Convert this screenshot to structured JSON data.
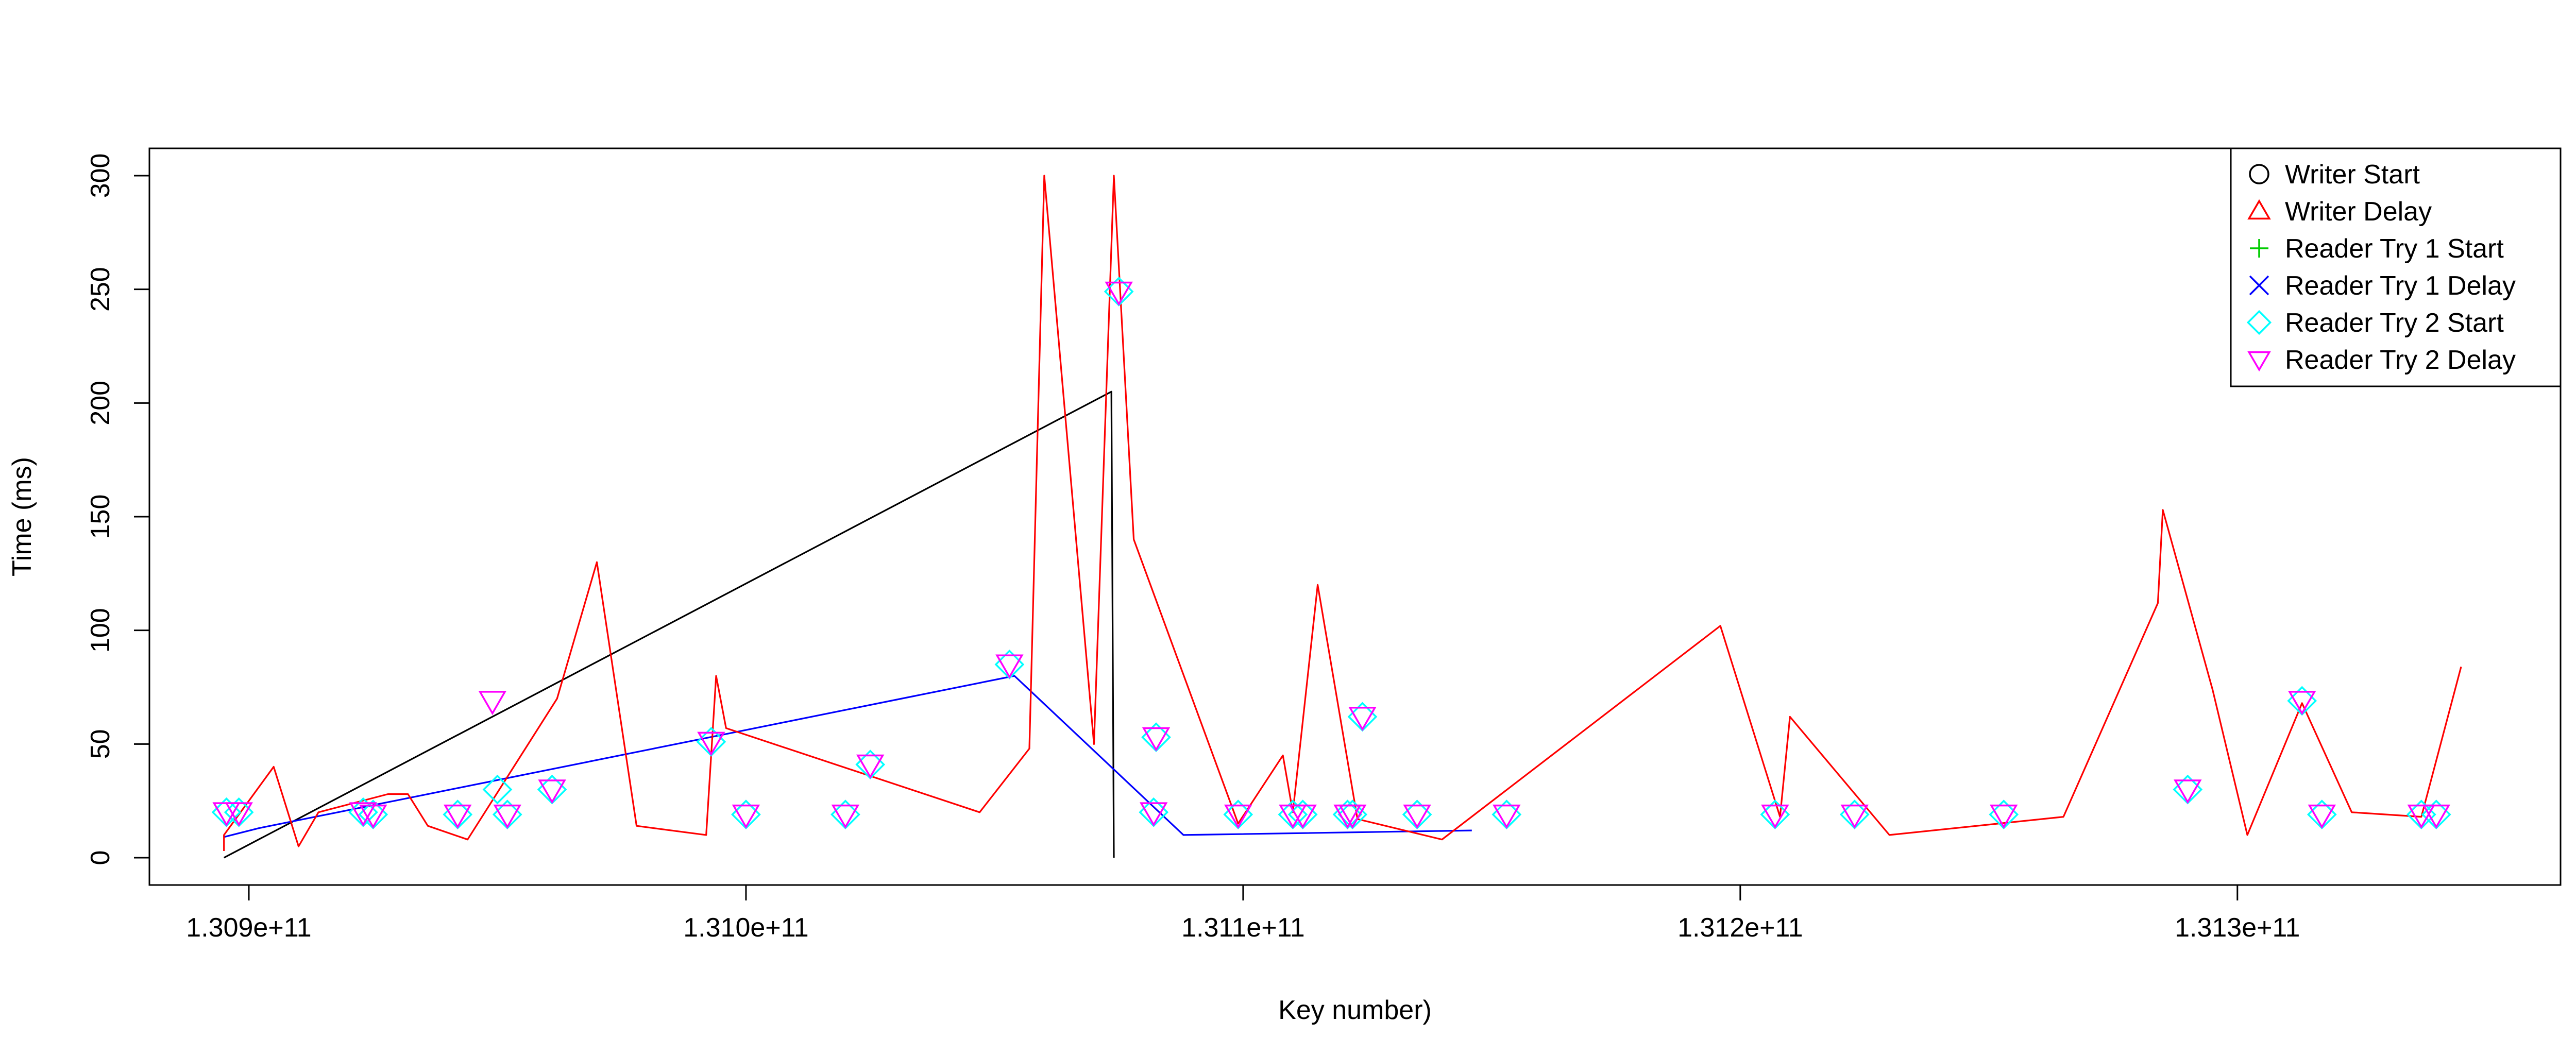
{
  "chart_data": {
    "type": "line",
    "title": "",
    "xlabel": "Key number)",
    "ylabel": "Time (ms)",
    "xlim": [
      130880000000,
      131365000000
    ],
    "ylim": [
      -12,
      312
    ],
    "x_ticks": [
      {
        "value": 130900000000,
        "label": "1.309e+11"
      },
      {
        "value": 131000000000,
        "label": "1.310e+11"
      },
      {
        "value": 131100000000,
        "label": "1.311e+11"
      },
      {
        "value": 131200000000,
        "label": "1.312e+11"
      },
      {
        "value": 131300000000,
        "label": "1.313e+11"
      }
    ],
    "y_ticks": [
      0,
      50,
      100,
      150,
      200,
      250,
      300
    ],
    "grid": false,
    "legend": {
      "position": "top-right",
      "entries": [
        {
          "name": "Writer Start",
          "symbol": "circle",
          "color": "#000000"
        },
        {
          "name": "Writer Delay",
          "symbol": "triangle-up",
          "color": "#ff0000"
        },
        {
          "name": "Reader Try 1 Start",
          "symbol": "plus",
          "color": "#00cc00"
        },
        {
          "name": "Reader Try 1 Delay",
          "symbol": "cross",
          "color": "#0000ff"
        },
        {
          "name": "Reader Try 2 Start",
          "symbol": "diamond",
          "color": "#00ffff"
        },
        {
          "name": "Reader Try 2 Delay",
          "symbol": "triangle-down",
          "color": "#ff00ff"
        }
      ]
    },
    "series": [
      {
        "name": "Writer Start",
        "color": "#000000",
        "baseline": 0,
        "spikes": [
          [
            131073500000,
            205
          ],
          [
            131074000000,
            0
          ]
        ]
      },
      {
        "name": "Reader Try 1 Start",
        "color": "#00aa00",
        "baseline": 9,
        "spikes": []
      },
      {
        "name": "Reader Try 1 Delay",
        "color": "#0000ff",
        "baseline": 9,
        "spikes": [
          [
            130902000000,
            13
          ],
          [
            131054000000,
            80
          ],
          [
            131088000000,
            10
          ],
          [
            131146000000,
            12
          ]
        ]
      },
      {
        "name": "Writer Delay",
        "color": "#ff0000",
        "baseline": 3,
        "spikes": [
          [
            130895000000,
            10
          ],
          [
            130905000000,
            40
          ],
          [
            130910000000,
            5
          ],
          [
            130914000000,
            20
          ],
          [
            130928000000,
            28
          ],
          [
            130932000000,
            28
          ],
          [
            130936000000,
            14
          ],
          [
            130944000000,
            8
          ],
          [
            130962000000,
            70
          ],
          [
            130970000000,
            130
          ],
          [
            130978000000,
            14
          ],
          [
            130992000000,
            10
          ],
          [
            130994000000,
            80
          ],
          [
            130996000000,
            57
          ],
          [
            131047000000,
            20
          ],
          [
            131057000000,
            48
          ],
          [
            131060000000,
            300
          ],
          [
            131070000000,
            50
          ],
          [
            131074000000,
            300
          ],
          [
            131078000000,
            140
          ],
          [
            131099000000,
            15
          ],
          [
            131108000000,
            45
          ],
          [
            131110000000,
            20
          ],
          [
            131115000000,
            120
          ],
          [
            131123000000,
            17
          ],
          [
            131140000000,
            8
          ],
          [
            131196000000,
            102
          ],
          [
            131208000000,
            18
          ],
          [
            131210000000,
            62
          ],
          [
            131230000000,
            10
          ],
          [
            131265000000,
            18
          ],
          [
            131284000000,
            112
          ],
          [
            131285000000,
            153
          ],
          [
            131295000000,
            74
          ],
          [
            131302000000,
            10
          ],
          [
            131313000000,
            68
          ],
          [
            131323000000,
            20
          ],
          [
            131337000000,
            18
          ],
          [
            131345000000,
            84
          ]
        ]
      }
    ],
    "points": [
      {
        "series": "Reader Try 2 Start",
        "marker": "diamond",
        "color": "#00ffff",
        "data": [
          [
            130895500000,
            20
          ],
          [
            130898000000,
            20
          ],
          [
            130923000000,
            20
          ],
          [
            130925000000,
            19
          ],
          [
            130942000000,
            19
          ],
          [
            130950000000,
            30
          ],
          [
            130952000000,
            19
          ],
          [
            130961000000,
            30
          ],
          [
            130993000000,
            51
          ],
          [
            131000000000,
            19
          ],
          [
            131020000000,
            19
          ],
          [
            131025000000,
            41
          ],
          [
            131053000000,
            85
          ],
          [
            131075000000,
            249
          ],
          [
            131082000000,
            20
          ],
          [
            131082500000,
            53
          ],
          [
            131099000000,
            19
          ],
          [
            131110000000,
            19
          ],
          [
            131112000000,
            19
          ],
          [
            131121000000,
            19
          ],
          [
            131122000000,
            19
          ],
          [
            131124000000,
            62
          ],
          [
            131135000000,
            19
          ],
          [
            131153000000,
            19
          ],
          [
            131207000000,
            19
          ],
          [
            131223000000,
            19
          ],
          [
            131253000000,
            19
          ],
          [
            131290000000,
            30
          ],
          [
            131313000000,
            69
          ],
          [
            131317000000,
            19
          ],
          [
            131337000000,
            19
          ],
          [
            131340000000,
            19
          ]
        ]
      },
      {
        "series": "Reader Try 2 Delay",
        "marker": "triangle-down",
        "color": "#ff00ff",
        "data": [
          [
            130895500000,
            20
          ],
          [
            130898000000,
            20
          ],
          [
            130923000000,
            20
          ],
          [
            130925000000,
            19
          ],
          [
            130942000000,
            19
          ],
          [
            130949000000,
            69
          ],
          [
            130952000000,
            19
          ],
          [
            130961000000,
            30
          ],
          [
            130993000000,
            51
          ],
          [
            131000000000,
            19
          ],
          [
            131020000000,
            19
          ],
          [
            131025000000,
            41
          ],
          [
            131053000000,
            85
          ],
          [
            131075000000,
            249
          ],
          [
            131082000000,
            20
          ],
          [
            131082500000,
            53
          ],
          [
            131099000000,
            19
          ],
          [
            131110000000,
            19
          ],
          [
            131112000000,
            19
          ],
          [
            131121000000,
            19
          ],
          [
            131122000000,
            19
          ],
          [
            131124000000,
            62
          ],
          [
            131135000000,
            19
          ],
          [
            131153000000,
            19
          ],
          [
            131207000000,
            19
          ],
          [
            131223000000,
            19
          ],
          [
            131253000000,
            19
          ],
          [
            131290000000,
            30
          ],
          [
            131313000000,
            69
          ],
          [
            131317000000,
            19
          ],
          [
            131337000000,
            19
          ],
          [
            131340000000,
            19
          ]
        ]
      }
    ]
  }
}
